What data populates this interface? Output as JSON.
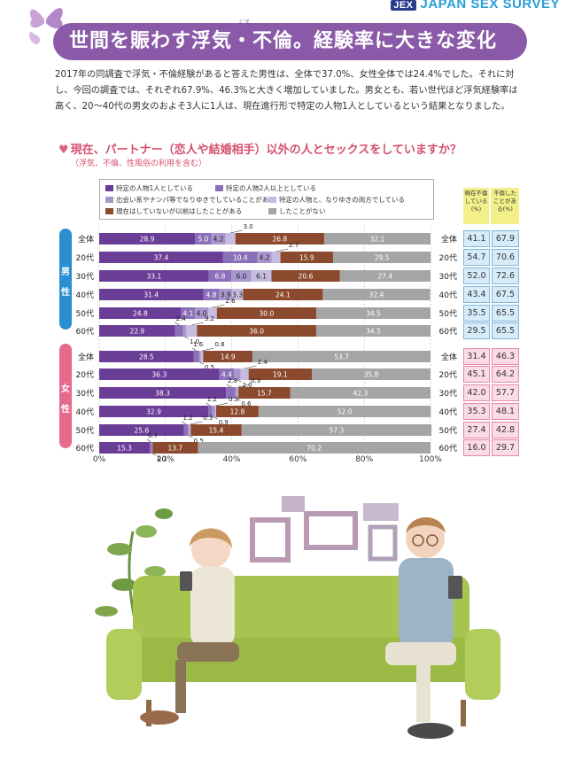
{
  "brand": {
    "logo": "JEX",
    "name": "JAPAN SEX SURVEY"
  },
  "title": "世間を賑わす浮気・不倫。経験率に大きな変化",
  "title_ruby": "にぎ",
  "intro": "2017年の同調査で浮気・不倫経験があると答えた男性は、全体で37.0%、女性全体では24.4%でした。それに対し、今回の調査では、それぞれ67.9%、46.3%と大きく増加していました。男女とも、若い世代ほど浮気経験率は高く、20〜40代の男女のおよそ3人に1人は、現在進行形で特定の人物1人としているという結果となりました。",
  "question": "現在、パートナー（恋人や結婚相手）以外の人とセックスをしていますか？",
  "question_note": "（浮気、不倫、性風俗の利用を含む）",
  "sides": {
    "male": [
      "男",
      "性"
    ],
    "female": [
      "女",
      "性"
    ]
  },
  "table_headers": [
    "現在不倫している(%)",
    "不倫したことがある(%)"
  ],
  "colors": [
    "#6a3d96",
    "#8b6fb8",
    "#a996cc",
    "#c6bcdf",
    "#8b4a2e",
    "#a5a5a5"
  ],
  "chart_data": {
    "type": "bar",
    "orientation": "horizontal-stacked",
    "legend": [
      "特定の人物1人としている",
      "特定の人物2人以上としている",
      "出会い系やナンパ等でなりゆきでしていることがある",
      "特定の人物と、なりゆきの両方でしている",
      "現在はしていないが以前はしたことがある",
      "したことがない"
    ],
    "x_ticks": [
      "0%",
      "20%",
      "40%",
      "60%",
      "80%",
      "100%"
    ],
    "xlim": [
      0,
      100
    ],
    "groups": [
      {
        "name": "male",
        "rows": [
          {
            "label": "全体",
            "values": [
              28.9,
              5.0,
              4.2,
              3.0,
              26.8,
              32.1
            ],
            "current": "41.1",
            "ever": "67.9"
          },
          {
            "label": "20代",
            "values": [
              37.4,
              10.4,
              4.2,
              2.7,
              15.9,
              29.5
            ],
            "current": "54.7",
            "ever": "70.6"
          },
          {
            "label": "30代",
            "values": [
              33.1,
              6.8,
              6.0,
              6.1,
              20.6,
              27.4
            ],
            "current": "52.0",
            "ever": "72.6"
          },
          {
            "label": "40代",
            "values": [
              31.4,
              4.8,
              3.9,
              3.3,
              24.1,
              32.4
            ],
            "current": "43.4",
            "ever": "67.5"
          },
          {
            "label": "50代",
            "values": [
              24.8,
              4.1,
              4.0,
              2.6,
              30.0,
              34.5
            ],
            "current": "35.5",
            "ever": "65.5"
          },
          {
            "label": "60代",
            "values": [
              22.9,
              2.4,
              1.0,
              3.2,
              36.0,
              34.5
            ],
            "current": "29.5",
            "ever": "65.5"
          }
        ]
      },
      {
        "name": "female",
        "rows": [
          {
            "label": "全体",
            "values": [
              28.5,
              1.6,
              0.5,
              0.8,
              14.9,
              53.7
            ],
            "current": "31.4",
            "ever": "46.3"
          },
          {
            "label": "20代",
            "values": [
              36.3,
              4.4,
              2.0,
              2.4,
              19.1,
              35.8
            ],
            "current": "45.1",
            "ever": "64.2"
          },
          {
            "label": "30代",
            "values": [
              38.3,
              2.8,
              0.6,
              0.3,
              15.7,
              42.3
            ],
            "current": "42.0",
            "ever": "57.7"
          },
          {
            "label": "40代",
            "values": [
              32.9,
              1.2,
              0.9,
              0.3,
              12.8,
              52.0
            ],
            "current": "35.3",
            "ever": "48.1"
          },
          {
            "label": "50代",
            "values": [
              25.6,
              1.2,
              0.5,
              0.3,
              15.4,
              57.3
            ],
            "current": "27.4",
            "ever": "42.8"
          },
          {
            "label": "60代",
            "values": [
              15.3,
              0.7,
              0.1,
              0.0,
              13.7,
              70.2
            ],
            "current": "16.0",
            "ever": "29.7"
          }
        ]
      }
    ]
  }
}
